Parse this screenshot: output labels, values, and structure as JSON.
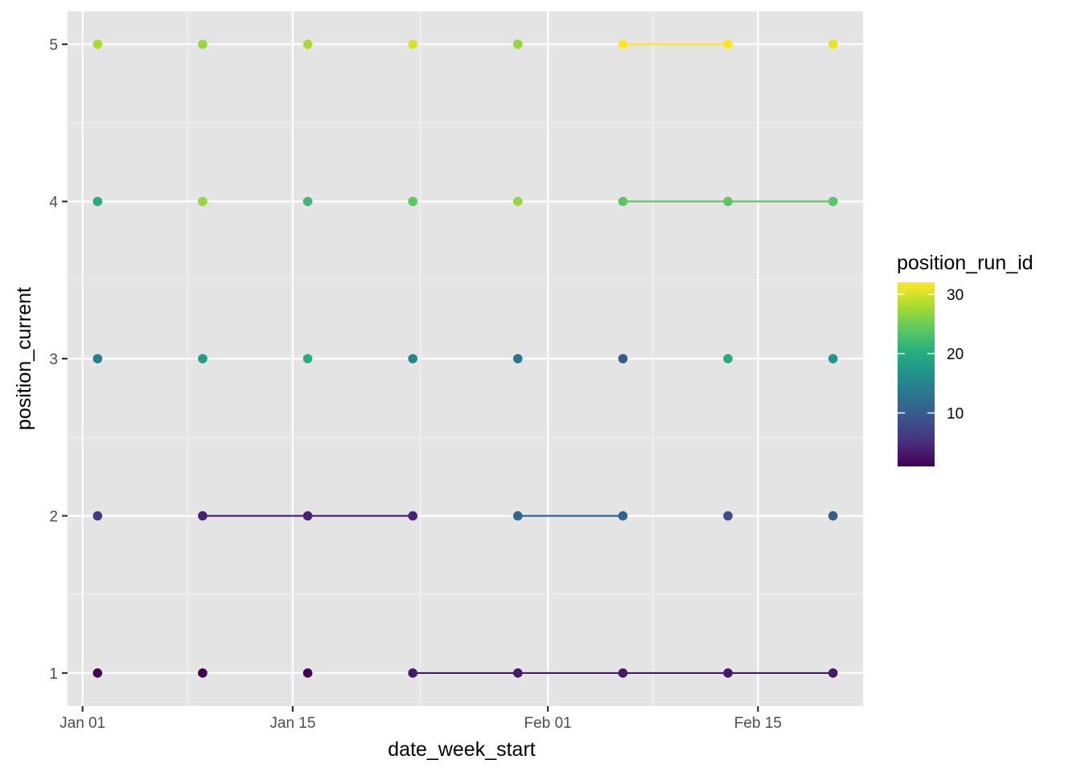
{
  "chart_data": {
    "type": "scatter",
    "title": "",
    "xlabel": "date_week_start",
    "ylabel": "position_current",
    "x_ticks": [
      "Jan 01",
      "Jan 15",
      "Feb 01",
      "Feb 15"
    ],
    "x_tick_dates": [
      "2024-01-01",
      "2024-01-15",
      "2024-02-01",
      "2024-02-15"
    ],
    "x_range": [
      "2023-12-31",
      "2024-02-22"
    ],
    "y_ticks": [
      1,
      2,
      3,
      4,
      5
    ],
    "ylim": [
      0.79,
      5.21
    ],
    "grid": true,
    "legend": {
      "title": "position_run_id",
      "placement": "right",
      "type": "colorbar",
      "palette": "viridis",
      "min": 1,
      "max": 32,
      "ticks": [
        10,
        20,
        30
      ]
    },
    "points": [
      {
        "x": "2024-01-02",
        "y": 1,
        "run_id": 1
      },
      {
        "x": "2024-01-02",
        "y": 2,
        "run_id": 6
      },
      {
        "x": "2024-01-02",
        "y": 3,
        "run_id": 14
      },
      {
        "x": "2024-01-02",
        "y": 4,
        "run_id": 20
      },
      {
        "x": "2024-01-02",
        "y": 5,
        "run_id": 28
      },
      {
        "x": "2024-01-09",
        "y": 1,
        "run_id": 1
      },
      {
        "x": "2024-01-09",
        "y": 2,
        "run_id": 4
      },
      {
        "x": "2024-01-09",
        "y": 3,
        "run_id": 18
      },
      {
        "x": "2024-01-09",
        "y": 4,
        "run_id": 27
      },
      {
        "x": "2024-01-09",
        "y": 5,
        "run_id": 27
      },
      {
        "x": "2024-01-16",
        "y": 1,
        "run_id": 1
      },
      {
        "x": "2024-01-16",
        "y": 2,
        "run_id": 4
      },
      {
        "x": "2024-01-16",
        "y": 3,
        "run_id": 20
      },
      {
        "x": "2024-01-16",
        "y": 4,
        "run_id": 22
      },
      {
        "x": "2024-01-16",
        "y": 5,
        "run_id": 28
      },
      {
        "x": "2024-01-23",
        "y": 1,
        "run_id": 3
      },
      {
        "x": "2024-01-23",
        "y": 2,
        "run_id": 4
      },
      {
        "x": "2024-01-23",
        "y": 3,
        "run_id": 15
      },
      {
        "x": "2024-01-23",
        "y": 4,
        "run_id": 24
      },
      {
        "x": "2024-01-23",
        "y": 5,
        "run_id": 30
      },
      {
        "x": "2024-01-30",
        "y": 1,
        "run_id": 3
      },
      {
        "x": "2024-01-30",
        "y": 2,
        "run_id": 11
      },
      {
        "x": "2024-01-30",
        "y": 3,
        "run_id": 13
      },
      {
        "x": "2024-01-30",
        "y": 4,
        "run_id": 27
      },
      {
        "x": "2024-01-30",
        "y": 5,
        "run_id": 27
      },
      {
        "x": "2024-02-06",
        "y": 1,
        "run_id": 3
      },
      {
        "x": "2024-02-06",
        "y": 2,
        "run_id": 11
      },
      {
        "x": "2024-02-06",
        "y": 3,
        "run_id": 10
      },
      {
        "x": "2024-02-06",
        "y": 4,
        "run_id": 24
      },
      {
        "x": "2024-02-06",
        "y": 5,
        "run_id": 32
      },
      {
        "x": "2024-02-13",
        "y": 1,
        "run_id": 3
      },
      {
        "x": "2024-02-13",
        "y": 2,
        "run_id": 8
      },
      {
        "x": "2024-02-13",
        "y": 3,
        "run_id": 20
      },
      {
        "x": "2024-02-13",
        "y": 4,
        "run_id": 24
      },
      {
        "x": "2024-02-13",
        "y": 5,
        "run_id": 32
      },
      {
        "x": "2024-02-20",
        "y": 1,
        "run_id": 3
      },
      {
        "x": "2024-02-20",
        "y": 2,
        "run_id": 10
      },
      {
        "x": "2024-02-20",
        "y": 3,
        "run_id": 17
      },
      {
        "x": "2024-02-20",
        "y": 4,
        "run_id": 24
      },
      {
        "x": "2024-02-20",
        "y": 5,
        "run_id": 31
      }
    ],
    "runs": [
      {
        "run_id": 4,
        "y": 2,
        "x_start": "2024-01-09",
        "x_end": "2024-01-23"
      },
      {
        "run_id": 3,
        "y": 1,
        "x_start": "2024-01-23",
        "x_end": "2024-02-20"
      },
      {
        "run_id": 11,
        "y": 2,
        "x_start": "2024-01-30",
        "x_end": "2024-02-06"
      },
      {
        "run_id": 24,
        "y": 4,
        "x_start": "2024-02-06",
        "x_end": "2024-02-20"
      },
      {
        "run_id": 32,
        "y": 5,
        "x_start": "2024-02-06",
        "x_end": "2024-02-13"
      }
    ]
  }
}
